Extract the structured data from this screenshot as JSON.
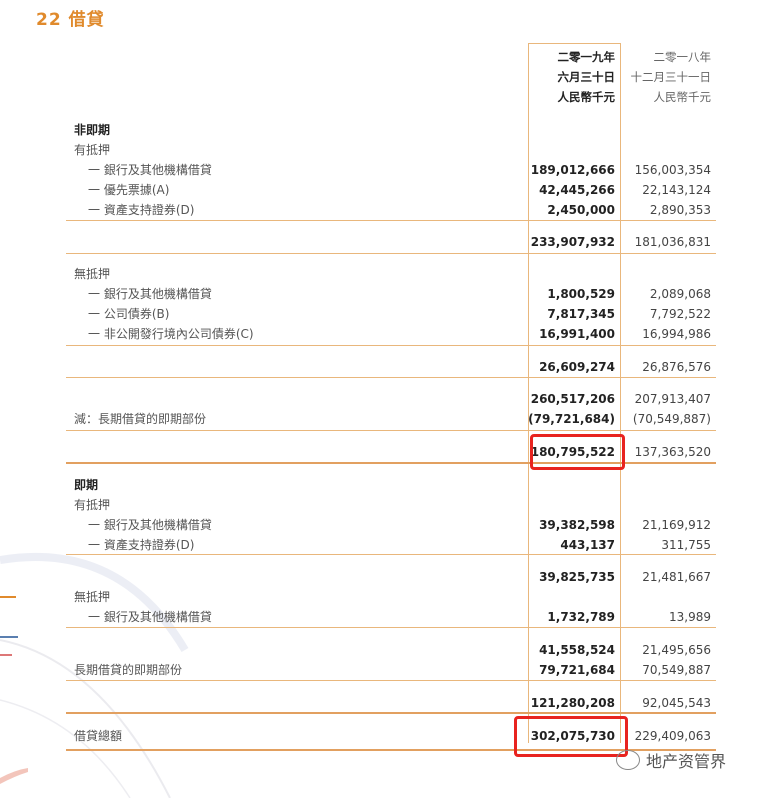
{
  "title": "22  借貸",
  "header": {
    "col2019": [
      "二零一九年",
      "六月三十日",
      "人民幣千元"
    ],
    "col2018": [
      "二零一八年",
      "十二月三十一日",
      "人民幣千元"
    ]
  },
  "rows": [
    {
      "label": "非即期",
      "style": "heading",
      "v1": "",
      "v2": ""
    },
    {
      "label": "有抵押",
      "style": "",
      "v1": "",
      "v2": ""
    },
    {
      "label": "一 銀行及其他機構借貸",
      "style": "indent",
      "v1": "189,012,666",
      "v2": "156,003,354"
    },
    {
      "label": "一 優先票據(A)",
      "style": "indent",
      "v1": "42,445,266",
      "v2": "22,143,124"
    },
    {
      "label": "一 資產支持證券(D)",
      "style": "indent",
      "v1": "2,450,000",
      "v2": "2,890,353"
    },
    {
      "label": "",
      "style": "",
      "v1": "233,907,932",
      "v2": "181,036,831"
    },
    {
      "label": "無抵押",
      "style": "",
      "v1": "",
      "v2": ""
    },
    {
      "label": "一 銀行及其他機構借貸",
      "style": "indent",
      "v1": "1,800,529",
      "v2": "2,089,068"
    },
    {
      "label": "一 公司債券(B)",
      "style": "indent",
      "v1": "7,817,345",
      "v2": "7,792,522"
    },
    {
      "label": "一 非公開發行境內公司債券(C)",
      "style": "indent",
      "v1": "16,991,400",
      "v2": "16,994,986"
    },
    {
      "label": "",
      "style": "",
      "v1": "26,609,274",
      "v2": "26,876,576"
    },
    {
      "label": "",
      "style": "",
      "v1": "260,517,206",
      "v2": "207,913,407"
    },
    {
      "label": "減：長期借貸的即期部份",
      "style": "",
      "v1": "(79,721,684)",
      "v2": "(70,549,887)"
    },
    {
      "label": "",
      "style": "",
      "v1": "180,795,522",
      "v2": "137,363,520"
    },
    {
      "label": "即期",
      "style": "heading",
      "v1": "",
      "v2": ""
    },
    {
      "label": "有抵押",
      "style": "",
      "v1": "",
      "v2": ""
    },
    {
      "label": "一 銀行及其他機構借貸",
      "style": "indent",
      "v1": "39,382,598",
      "v2": "21,169,912"
    },
    {
      "label": "一 資產支持證券(D)",
      "style": "indent",
      "v1": "443,137",
      "v2": "311,755"
    },
    {
      "label": "",
      "style": "",
      "v1": "39,825,735",
      "v2": "21,481,667"
    },
    {
      "label": "無抵押",
      "style": "",
      "v1": "",
      "v2": ""
    },
    {
      "label": "一 銀行及其他機構借貸",
      "style": "indent",
      "v1": "1,732,789",
      "v2": "13,989"
    },
    {
      "label": "",
      "style": "",
      "v1": "41,558,524",
      "v2": "21,495,656"
    },
    {
      "label": "長期借貸的即期部份",
      "style": "",
      "v1": "79,721,684",
      "v2": "70,549,887"
    },
    {
      "label": "",
      "style": "",
      "v1": "121,280,208",
      "v2": "92,045,543"
    },
    {
      "label": "借貸總額",
      "style": "",
      "v1": "302,075,730",
      "v2": "229,409,063"
    }
  ],
  "watermark": "地产资管界",
  "colors": {
    "accent": "#e08a2c",
    "rule": "#e9b77c",
    "highlight": "#e8231f"
  }
}
